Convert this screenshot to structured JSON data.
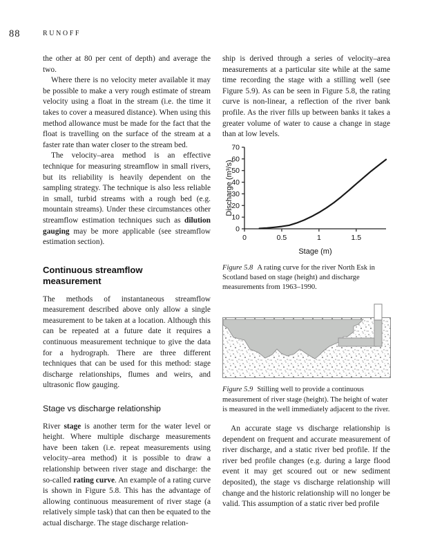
{
  "page": {
    "number": "88",
    "running_head": "RUNOFF"
  },
  "left_column": {
    "blocks": [
      {
        "type": "para",
        "indent": false,
        "runs": [
          {
            "t": "the other at 80 per cent of depth) and average the two."
          }
        ]
      },
      {
        "type": "para",
        "indent": true,
        "runs": [
          {
            "t": "Where there is no velocity meter available it may be possible to make a very rough estimate of stream velocity using a float in the stream (i.e. the time it takes to cover a measured distance). When using this method allowance must be made for the fact that the float is travelling on the surface of the stream at a faster rate than water closer to the stream bed."
          }
        ]
      },
      {
        "type": "para",
        "indent": true,
        "runs": [
          {
            "t": "The velocity–area method is an effective technique for measuring streamflow in small rivers, but its reliability is heavily dependent on the sampling strategy. The technique is also less reliable in small, turbid streams with a rough bed (e.g. mountain streams). Under these circumstances other streamflow estimation techniques such as "
          },
          {
            "t": "dilution gauging",
            "b": true
          },
          {
            "t": " may be more applicable (see streamflow estimation section)."
          }
        ]
      },
      {
        "type": "heading",
        "text": "Continuous streamflow measurement"
      },
      {
        "type": "para",
        "indent": false,
        "runs": [
          {
            "t": "The methods of instantaneous streamflow measurement described above only allow a single measurement to be taken at a location. Although this can be repeated at a future date it requires a continuous measurement technique to give the data for a hydrograph. There are three different techniques that can be used for this method: stage discharge relationships, flumes and weirs, and ultrasonic flow gauging."
          }
        ]
      },
      {
        "type": "subheading",
        "text": "Stage vs discharge relationship"
      },
      {
        "type": "para",
        "indent": false,
        "runs": [
          {
            "t": "River "
          },
          {
            "t": "stage",
            "b": true
          },
          {
            "t": " is another term for the water level or height. Where multiple discharge measurements have been taken (i.e. repeat measurements using velocity–area method) it is possible to draw a relationship between river stage and discharge: the so-called "
          },
          {
            "t": "rating curve",
            "b": true
          },
          {
            "t": ". An example of a rating curve is shown in Figure 5.8. This has the advantage of allowing continuous measurement of river stage (a relatively simple task) that can then be equated to the actual discharge. The stage discharge relation-"
          }
        ]
      }
    ]
  },
  "right_column": {
    "top_blocks": [
      {
        "type": "para",
        "indent": false,
        "runs": [
          {
            "t": "ship is derived through a series of velocity–area measurements at a particular site while at the same time recording the stage with a stilling well (see Figure 5.9). As can be seen in Figure 5.8, the rating curve is non-linear, a reflection of the river bank profile. As the river fills up between banks it takes a greater volume of water to cause a change in stage than at low levels."
          }
        ]
      }
    ],
    "figure_5_8": {
      "label": "Figure 5.8",
      "text": "A rating curve for the river North Esk in Scotland based on stage (height) and discharge measurements from 1963–1990."
    },
    "figure_5_9": {
      "label": "Figure 5.9",
      "text": "Stilling well to provide a continuous measurement of river stage (height). The height of water is measured in the well immediately adjacent to the river."
    },
    "bottom_blocks": [
      {
        "type": "para",
        "indent": true,
        "runs": [
          {
            "t": "An accurate stage vs discharge relationship is dependent on frequent and accurate measurement of river discharge, and a static river bed profile. If the river bed profile changes (e.g. during a large flood event it may get scoured out or new sediment deposited), the stage vs discharge relationship will change and the historic relationship will no longer be valid. This assumption of a static river bed profile"
          }
        ]
      }
    ]
  },
  "chart_data": {
    "type": "line",
    "title": "",
    "xlabel": "Stage (m)",
    "ylabel": "Discharge (m³/s)",
    "xlim": [
      0,
      1.9
    ],
    "ylim": [
      0,
      70
    ],
    "x_ticks": [
      0,
      0.5,
      1,
      1.5
    ],
    "y_ticks": [
      0,
      10,
      20,
      30,
      40,
      50,
      60,
      70
    ],
    "grid": false,
    "legend": false,
    "series": [
      {
        "name": "rating curve",
        "x": [
          0.2,
          0.3,
          0.4,
          0.5,
          0.6,
          0.7,
          0.8,
          0.9,
          1.0,
          1.1,
          1.2,
          1.3,
          1.4,
          1.5,
          1.6,
          1.7,
          1.8,
          1.9
        ],
        "y": [
          0.3,
          0.7,
          1.3,
          2,
          3,
          5,
          7.5,
          10.5,
          14,
          18,
          22.5,
          27.5,
          33,
          38.5,
          44,
          49.5,
          54.5,
          59.5
        ]
      }
    ],
    "line_color": "#1a1a1a"
  },
  "colors": {
    "water_grey": "#c5c7c5",
    "figure_outline": "#8a8a8a"
  }
}
